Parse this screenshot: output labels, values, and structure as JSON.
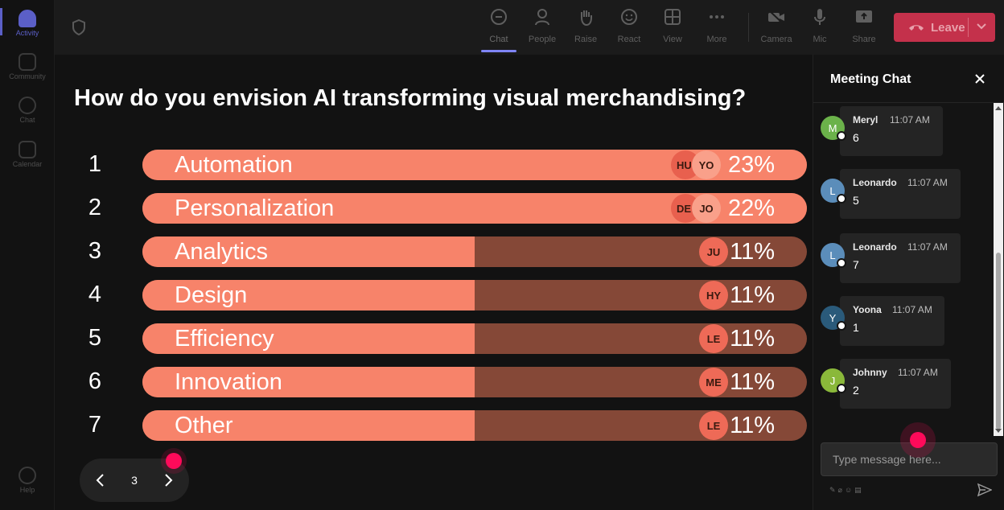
{
  "rail": {
    "items": [
      {
        "label": "Activity",
        "icon": "bell-icon",
        "active": true
      },
      {
        "label": "Community",
        "icon": "community-icon"
      },
      {
        "label": "Chat",
        "icon": "chat-icon"
      },
      {
        "label": "Calendar",
        "icon": "calendar-icon"
      }
    ],
    "help_label": "Help"
  },
  "toolbar": {
    "chat": "Chat",
    "people": "People",
    "raise": "Raise",
    "react": "React",
    "view": "View",
    "more": "More",
    "camera": "Camera",
    "mic": "Mic",
    "share": "Share",
    "leave": "Leave"
  },
  "poll": {
    "question": "How do you envision AI transforming visual merchandising?",
    "options": [
      {
        "num": "1",
        "label": "Automation",
        "pct": "23%",
        "value": 0.23,
        "voters": [
          "HU",
          "YO"
        ]
      },
      {
        "num": "2",
        "label": "Personalization",
        "pct": "22%",
        "value": 0.22,
        "voters": [
          "DE",
          "JO"
        ]
      },
      {
        "num": "3",
        "label": "Analytics",
        "pct": "11%",
        "value": 0.11,
        "voters": [
          "JU"
        ]
      },
      {
        "num": "4",
        "label": "Design",
        "pct": "11%",
        "value": 0.11,
        "voters": [
          "HY"
        ]
      },
      {
        "num": "5",
        "label": "Efficiency",
        "pct": "11%",
        "value": 0.11,
        "voters": [
          "LE"
        ]
      },
      {
        "num": "6",
        "label": "Innovation",
        "pct": "11%",
        "value": 0.11,
        "voters": [
          "ME"
        ]
      },
      {
        "num": "7",
        "label": "Other",
        "pct": "11%",
        "value": 0.11,
        "voters": [
          "LE"
        ]
      }
    ],
    "page": "3"
  },
  "chat": {
    "title": "Meeting Chat",
    "messages": [
      {
        "initial": "M",
        "name": "Meryl",
        "time": "11:07 AM",
        "text": "6",
        "color": "#6bb24a"
      },
      {
        "initial": "L",
        "name": "Leonardo",
        "time": "11:07 AM",
        "text": "5",
        "color": "#5b8dba"
      },
      {
        "initial": "L",
        "name": "Leonardo",
        "time": "11:07 AM",
        "text": "7",
        "color": "#5b8dba"
      },
      {
        "initial": "Y",
        "name": "Yoona",
        "time": "11:07 AM",
        "text": "1",
        "color": "#2a5a7a"
      },
      {
        "initial": "J",
        "name": "Johnny",
        "time": "11:07 AM",
        "text": "2",
        "color": "#8ab83a"
      }
    ],
    "input_placeholder": "Type message here..."
  },
  "colors": {
    "bar_fill": "#f7836a",
    "bar_track": "#854837",
    "leave_red": "#c4314b",
    "accent": "#5b5fc7",
    "cursor_dot": "#ff0a5a"
  }
}
